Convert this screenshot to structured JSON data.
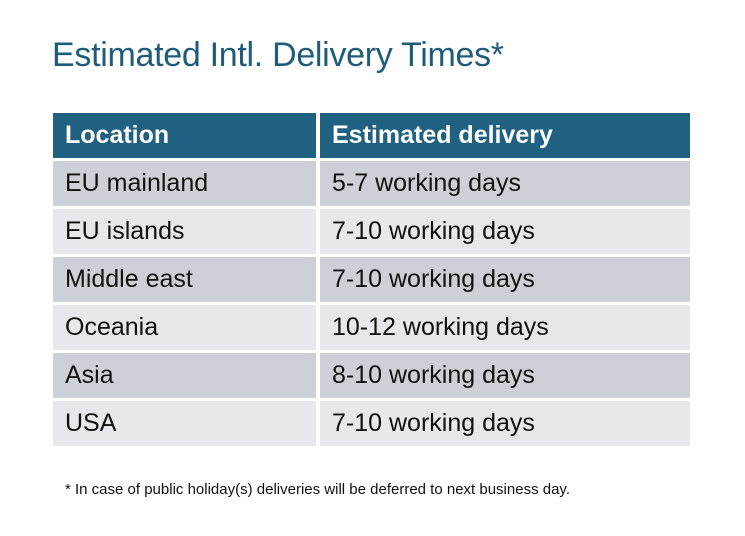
{
  "title": "Estimated Intl. Delivery Times*",
  "table": {
    "headers": [
      "Location",
      "Estimated delivery"
    ],
    "rows": [
      [
        "EU mainland",
        "5-7 working days"
      ],
      [
        "EU islands",
        "7-10 working days"
      ],
      [
        "Middle east",
        "7-10 working days"
      ],
      [
        "Oceania",
        "10-12 working days"
      ],
      [
        "Asia",
        "8-10 working days"
      ],
      [
        "USA",
        "7-10 working days"
      ]
    ]
  },
  "footnote": "* In case of public holiday(s) deliveries will be deferred to next business day.",
  "colors": {
    "header": "#206080",
    "title": "#1f5c7a",
    "row_dark": "#cdd1d7",
    "row_light": "#e6e8eb"
  }
}
